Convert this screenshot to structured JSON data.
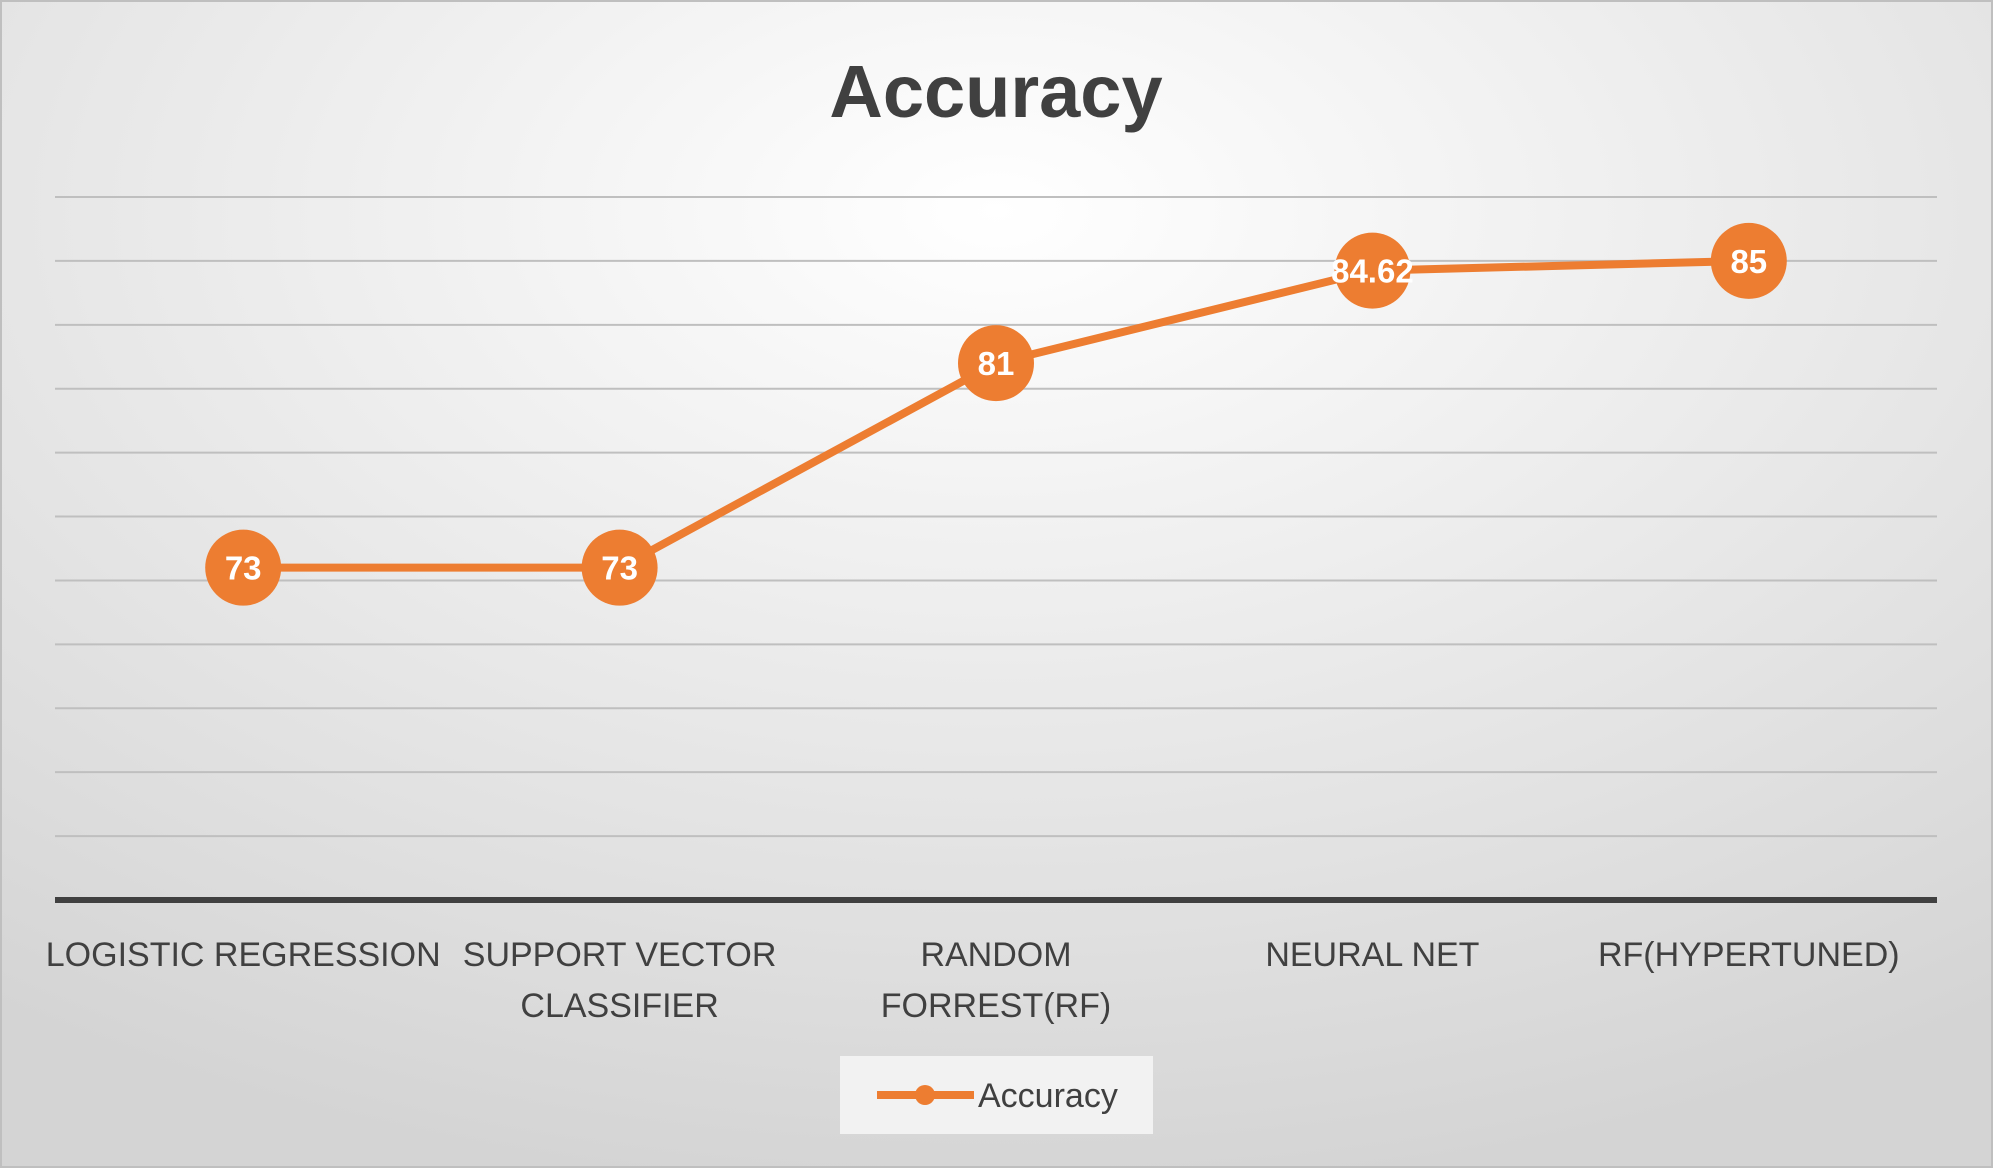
{
  "chart_data": {
    "type": "line",
    "title": "Accuracy",
    "xlabel": "",
    "ylabel": "",
    "categories": [
      [
        "LOGISTIC REGRESSION"
      ],
      [
        "SUPPORT VECTOR",
        "CLASSIFIER"
      ],
      [
        "RANDOM",
        "FORREST(RF)"
      ],
      [
        "NEURAL NET"
      ],
      [
        "RF(HYPERTUNED)"
      ]
    ],
    "series": [
      {
        "name": "Accuracy",
        "values": [
          73,
          73,
          81,
          84.62,
          85
        ],
        "labels": [
          "73",
          "73",
          "81",
          "84.62",
          "85"
        ],
        "color": "#ED7D31"
      }
    ],
    "ylim": [
      60,
      87.5
    ],
    "y_gridline_step": 2.5,
    "grid": true,
    "y_axis_labels_shown": false,
    "data_labels": true,
    "legend": "bottom",
    "colors": {
      "background_light": "#ffffff",
      "background_dark": "#d4d4d4",
      "gridline": "#bfbfbf",
      "axis": "#404040",
      "text": "#404040",
      "legend_box": "#f2f2f2"
    }
  }
}
